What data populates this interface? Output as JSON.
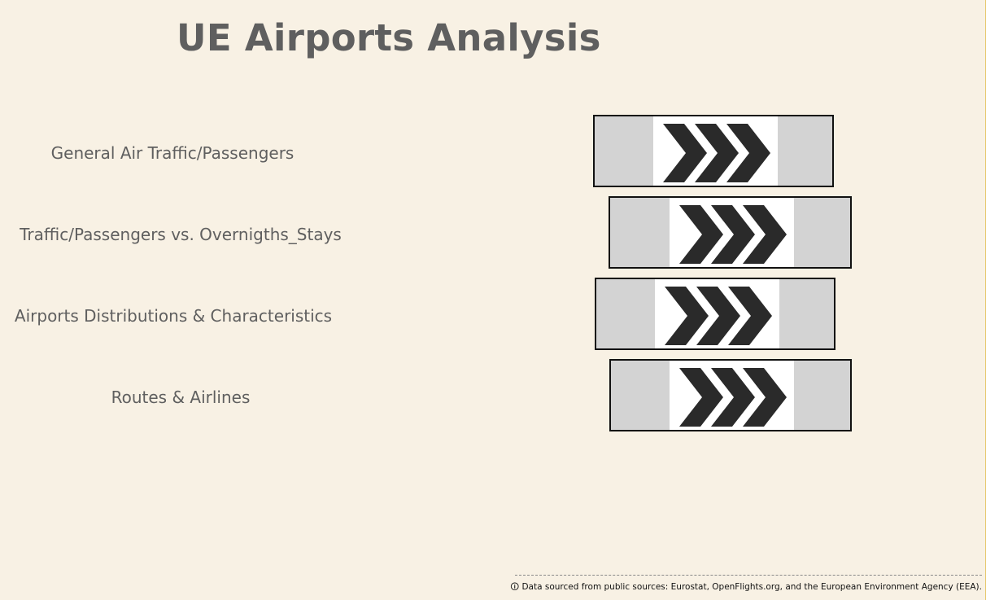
{
  "page": {
    "title": "UE Airports Analysis",
    "accent_color": "#e6c76a",
    "background_color": "#f8f1e4"
  },
  "navigation": {
    "items": [
      {
        "label": "General Air Traffic/Passengers",
        "icon": "triple-chevron-right-icon"
      },
      {
        "label": "Traffic/Passengers vs. Overnigths_Stays",
        "icon": "triple-chevron-right-icon"
      },
      {
        "label": "Airports Distributions & Characteristics",
        "icon": "triple-chevron-right-icon"
      },
      {
        "label": "Routes & Airlines",
        "icon": "triple-chevron-right-icon"
      }
    ]
  },
  "footer": {
    "note": "🛈 Data sourced from public sources: Eurostat, OpenFlights.org, and the European Environment Agency (EEA)."
  }
}
